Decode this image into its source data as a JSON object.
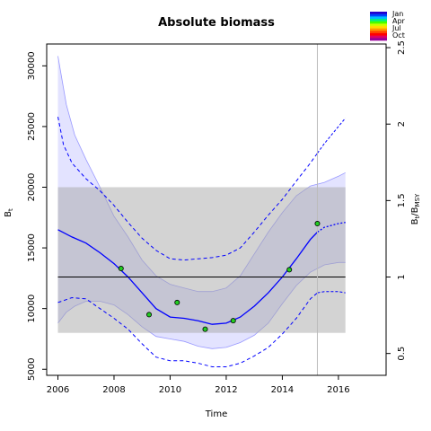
{
  "chart_data": {
    "type": "line",
    "title": "Absolute biomass",
    "xlabel": "Time",
    "ylabel_left": "B",
    "ylabel_left_sub": "t",
    "ylabel_right": "B",
    "ylabel_right_sub": "t",
    "ylabel_right_rest": "/B",
    "ylabel_right_rest_sub": "MSY",
    "xlim": [
      2005.6,
      2017.7
    ],
    "ylim": [
      4500,
      31800
    ],
    "right_axis_scale": 12600,
    "xticks": [
      2006,
      2008,
      2010,
      2012,
      2014,
      2016
    ],
    "yticks": [
      5000,
      10000,
      15000,
      20000,
      25000,
      30000
    ],
    "yticks_right": [
      0.5,
      1,
      1.5,
      2,
      2.5
    ],
    "grey_band": {
      "x": [
        2006,
        2016.25
      ],
      "y": [
        8000,
        20000
      ]
    },
    "bmsy_line": 12600,
    "vertical_marker_x": 2015.25,
    "series": [
      {
        "role": "estimate",
        "color": "#0000ff",
        "x": [
          2006,
          2006.5,
          2007,
          2007.5,
          2008,
          2008.5,
          2009,
          2009.5,
          2010,
          2010.5,
          2011,
          2011.5,
          2012,
          2012.5,
          2013,
          2013.5,
          2014,
          2014.5,
          2015,
          2015.25
        ],
        "y": [
          16500,
          15900,
          15400,
          14600,
          13700,
          12600,
          11300,
          10000,
          9300,
          9200,
          9000,
          8700,
          8800,
          9300,
          10200,
          11300,
          12600,
          14100,
          15700,
          16300
        ]
      },
      {
        "role": "estimate-forecast",
        "color": "#0000ff",
        "x": [
          2015.25,
          2015.5,
          2016,
          2016.25
        ],
        "y": [
          16300,
          16700,
          17000,
          17100
        ]
      },
      {
        "role": "upper-ci",
        "color": "#0000ff",
        "x": [
          2006,
          2006.2,
          2006.5,
          2007,
          2007.5,
          2008,
          2008.5,
          2009,
          2009.5,
          2010,
          2010.5,
          2011,
          2011.5,
          2012,
          2012.5,
          2013,
          2013.5,
          2014,
          2014.5,
          2015,
          2015.25
        ],
        "y": [
          25800,
          23500,
          22000,
          20700,
          19700,
          18500,
          17100,
          15800,
          14800,
          14100,
          14000,
          14100,
          14200,
          14400,
          15000,
          16300,
          17700,
          19000,
          20500,
          22000,
          22800
        ]
      },
      {
        "role": "upper-ci-forecast",
        "color": "#0000ff",
        "x": [
          2015.25,
          2015.5,
          2016,
          2016.25
        ],
        "y": [
          22800,
          23600,
          25000,
          25700
        ]
      },
      {
        "role": "lower-ci",
        "color": "#0000ff",
        "x": [
          2006,
          2006.5,
          2007,
          2007.5,
          2008,
          2008.5,
          2009,
          2009.5,
          2010,
          2010.5,
          2011,
          2011.5,
          2012,
          2012.5,
          2013,
          2013.5,
          2014,
          2014.5,
          2015,
          2015.25
        ],
        "y": [
          10500,
          10900,
          10800,
          10000,
          9200,
          8300,
          7100,
          6000,
          5700,
          5700,
          5500,
          5200,
          5200,
          5500,
          6100,
          6800,
          7900,
          9200,
          10800,
          11300
        ]
      },
      {
        "role": "lower-ci-forecast",
        "color": "#0000ff",
        "x": [
          2015.25,
          2015.5,
          2016,
          2016.25
        ],
        "y": [
          11300,
          11400,
          11400,
          11300
        ]
      }
    ],
    "band": {
      "color": "#0000ff",
      "x": [
        2006,
        2006.3,
        2006.6,
        2007,
        2007.5,
        2008,
        2008.5,
        2009,
        2009.5,
        2010,
        2010.5,
        2011,
        2011.5,
        2012,
        2012.5,
        2013,
        2013.5,
        2014,
        2014.5,
        2015,
        2015.5,
        2016,
        2016.25
      ],
      "upper": [
        30800,
        26800,
        24300,
        22300,
        20000,
        17600,
        15900,
        14000,
        12700,
        12000,
        11700,
        11400,
        11400,
        11700,
        12700,
        14500,
        16300,
        17900,
        19300,
        20100,
        20400,
        20900,
        21200
      ],
      "lower": [
        8800,
        9700,
        10200,
        10600,
        10600,
        10300,
        9500,
        8500,
        7700,
        7500,
        7300,
        6900,
        6700,
        6800,
        7200,
        7800,
        8800,
        10400,
        11900,
        13000,
        13600,
        13800,
        13800
      ]
    },
    "observations": {
      "role": "index-points",
      "x": [
        2008.25,
        2009.25,
        2010.25,
        2011.25,
        2012.25,
        2014.25,
        2015.25
      ],
      "y": [
        13300,
        9500,
        10500,
        8300,
        9000,
        13200,
        17000
      ],
      "color": "#22cc22"
    },
    "legend": {
      "placement": "top-right",
      "labels": [
        "Jan",
        "Apr",
        "Jul",
        "Oct"
      ],
      "colors": [
        "#2200cc",
        "#0044ff",
        "#00bbff",
        "#00ee88",
        "#44ff00",
        "#ccff00",
        "#ffdd00",
        "#ff9900",
        "#ff4400",
        "#ff0000",
        "#dd0066",
        "#990099"
      ]
    }
  }
}
